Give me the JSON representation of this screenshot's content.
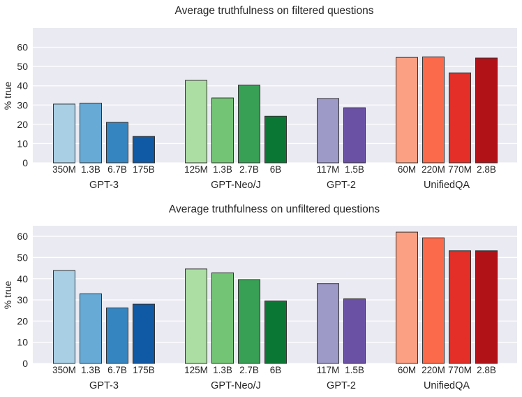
{
  "chart_data": [
    {
      "type": "bar",
      "title": "Average truthfulness on filtered questions",
      "ylabel": "% true",
      "xlabel": "",
      "ylim": [
        0,
        70
      ],
      "yticks": [
        0,
        10,
        20,
        30,
        40,
        50,
        60
      ],
      "grid": true,
      "groups": [
        {
          "name": "GPT-3",
          "categories": [
            "350M",
            "1.3B",
            "6.7B",
            "175B"
          ],
          "values": [
            30.5,
            31.0,
            21.0,
            13.7
          ],
          "colors": [
            "#a9cfe5",
            "#68aad6",
            "#3585c0",
            "#1059a4"
          ]
        },
        {
          "name": "GPT-Neo/J",
          "categories": [
            "125M",
            "1.3B",
            "2.7B",
            "6B"
          ],
          "values": [
            42.8,
            33.7,
            40.3,
            24.2
          ],
          "colors": [
            "#acdea3",
            "#74c476",
            "#37a055",
            "#0b7734"
          ]
        },
        {
          "name": "GPT-2",
          "categories": [
            "117M",
            "1.5B"
          ],
          "values": [
            33.4,
            28.6
          ],
          "colors": [
            "#9e9ac8",
            "#6a51a3"
          ]
        },
        {
          "name": "UnifiedQA",
          "categories": [
            "60M",
            "220M",
            "770M",
            "2.8B"
          ],
          "values": [
            54.7,
            55.0,
            46.7,
            54.4
          ],
          "colors": [
            "#fca083",
            "#fb6a4a",
            "#e32f27",
            "#b11218"
          ]
        }
      ]
    },
    {
      "type": "bar",
      "title": "Average truthfulness on unfiltered questions",
      "ylabel": "% true",
      "xlabel": "",
      "ylim": [
        0,
        65
      ],
      "yticks": [
        0,
        10,
        20,
        30,
        40,
        50,
        60
      ],
      "grid": true,
      "groups": [
        {
          "name": "GPT-3",
          "categories": [
            "350M",
            "1.3B",
            "6.7B",
            "175B"
          ],
          "values": [
            43.9,
            32.9,
            26.2,
            28.0
          ],
          "colors": [
            "#a9cfe5",
            "#68aad6",
            "#3585c0",
            "#1059a4"
          ]
        },
        {
          "name": "GPT-Neo/J",
          "categories": [
            "125M",
            "1.3B",
            "2.7B",
            "6B"
          ],
          "values": [
            44.6,
            42.8,
            39.6,
            29.5
          ],
          "colors": [
            "#acdea3",
            "#74c476",
            "#37a055",
            "#0b7734"
          ]
        },
        {
          "name": "GPT-2",
          "categories": [
            "117M",
            "1.5B"
          ],
          "values": [
            37.7,
            30.5
          ],
          "colors": [
            "#9e9ac8",
            "#6a51a3"
          ]
        },
        {
          "name": "UnifiedQA",
          "categories": [
            "60M",
            "220M",
            "770M",
            "2.8B"
          ],
          "values": [
            62.0,
            59.3,
            53.2,
            53.2
          ],
          "colors": [
            "#fca083",
            "#fb6a4a",
            "#e32f27",
            "#b11218"
          ]
        }
      ]
    }
  ]
}
